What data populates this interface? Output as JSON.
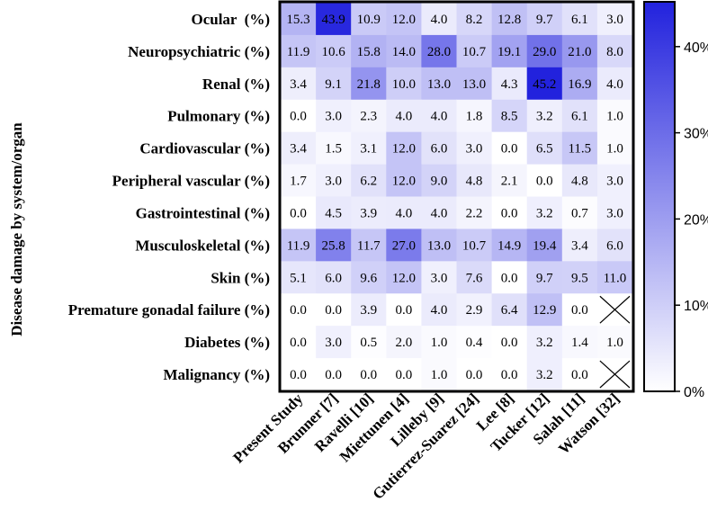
{
  "chart_data": {
    "type": "heatmap",
    "ylabel": "Disease damage by system/organ",
    "rows": [
      "Ocular  (%)",
      "Neuropsychiatric (%)",
      "Renal (%)",
      "Pulmonary (%)",
      "Cardiovascular (%)",
      "Peripheral vascular (%)",
      "Gastrointestinal (%)",
      "Musculoskeletal (%)",
      "Skin (%)",
      "Premature gonadal failure (%)",
      "Diabetes (%)",
      "Malignancy (%)"
    ],
    "columns": [
      "Present Study",
      "Brunner [7]",
      "Ravelli [10]",
      "Miettunen [4]",
      "Lilleby [9]",
      "Gutierrez-Suarez [24]",
      "Lee [8]",
      "Tucker [12]",
      "Salah [11]",
      "Watson [32]"
    ],
    "values": [
      [
        15.3,
        43.9,
        10.9,
        12.0,
        4.0,
        8.2,
        12.8,
        9.7,
        6.1,
        3.0
      ],
      [
        11.9,
        10.6,
        15.8,
        14.0,
        28.0,
        10.7,
        19.1,
        29.0,
        21.0,
        8.0
      ],
      [
        3.4,
        9.1,
        21.8,
        10.0,
        13.0,
        13.0,
        4.3,
        45.2,
        16.9,
        4.0
      ],
      [
        0.0,
        3.0,
        2.3,
        4.0,
        4.0,
        1.8,
        8.5,
        3.2,
        6.1,
        1.0
      ],
      [
        3.4,
        1.5,
        3.1,
        12.0,
        6.0,
        3.0,
        0.0,
        6.5,
        11.5,
        1.0
      ],
      [
        1.7,
        3.0,
        6.2,
        12.0,
        9.0,
        4.8,
        2.1,
        0.0,
        4.8,
        3.0
      ],
      [
        0.0,
        4.5,
        3.9,
        4.0,
        4.0,
        2.2,
        0.0,
        3.2,
        0.7,
        3.0
      ],
      [
        11.9,
        25.8,
        11.7,
        27.0,
        13.0,
        10.7,
        14.9,
        19.4,
        3.4,
        6.0
      ],
      [
        5.1,
        6.0,
        9.6,
        12.0,
        3.0,
        7.6,
        0.0,
        9.7,
        9.5,
        11.0
      ],
      [
        0.0,
        0.0,
        3.9,
        0.0,
        4.0,
        2.9,
        6.4,
        12.9,
        0.0,
        null
      ],
      [
        0.0,
        3.0,
        0.5,
        2.0,
        1.0,
        0.4,
        0.0,
        3.2,
        1.4,
        1.0
      ],
      [
        0.0,
        0.0,
        0.0,
        0.0,
        1.0,
        0.0,
        0.0,
        3.2,
        0.0,
        null
      ]
    ],
    "colorbar": {
      "min": 0,
      "max": 45.2,
      "ticks": [
        0,
        10,
        20,
        30,
        40
      ],
      "tick_labels": [
        "0%",
        "10%",
        "20%",
        "30%",
        "40%"
      ],
      "color_low": "#ffffff",
      "color_high": "#2222dd"
    }
  }
}
